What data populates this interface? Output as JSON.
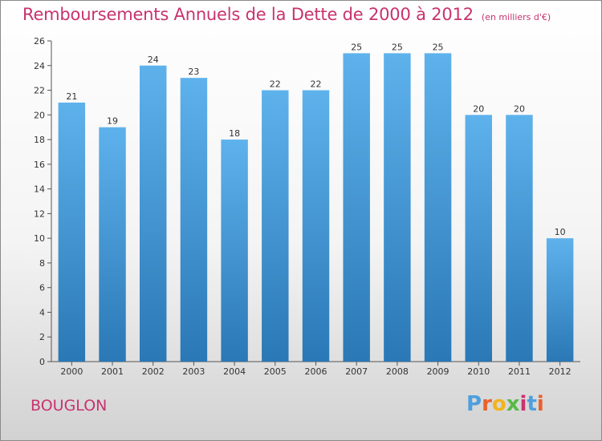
{
  "title": "Remboursements Annuels de la Dette de 2000 à 2012",
  "subtitle": "(en milliers d'€)",
  "commune": "BOUGLON",
  "logo": {
    "letters": [
      "P",
      "r",
      "o",
      "x",
      "i",
      "t",
      "i"
    ],
    "colors": [
      "#4f9fdd",
      "#e8612c",
      "#f2b31d",
      "#58b947",
      "#c8336e",
      "#4f9fdd",
      "#e8612c"
    ]
  },
  "colors": {
    "bar_top": "#5eb2ec",
    "bar_bottom": "#2a78b6",
    "accent": "#c8336e"
  },
  "chart_data": {
    "type": "bar",
    "categories": [
      "2000",
      "2001",
      "2002",
      "2003",
      "2004",
      "2005",
      "2006",
      "2007",
      "2008",
      "2009",
      "2010",
      "2011",
      "2012"
    ],
    "values": [
      21,
      19,
      24,
      23,
      18,
      22,
      22,
      25,
      25,
      25,
      20,
      20,
      10
    ],
    "ylim": [
      0,
      26
    ],
    "yticks": [
      0,
      2,
      4,
      6,
      8,
      10,
      12,
      14,
      16,
      18,
      20,
      22,
      24,
      26
    ],
    "grid": false,
    "legend": "none"
  }
}
